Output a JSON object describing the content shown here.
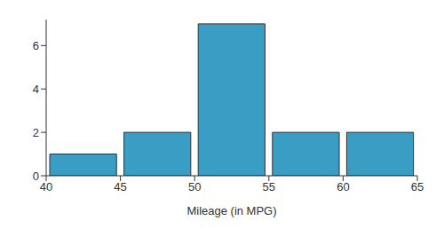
{
  "chart_data": {
    "type": "histogram",
    "x_label": "Mileage (in MPG)",
    "bins": [
      40,
      45,
      50,
      55,
      60,
      65
    ],
    "values": [
      1,
      2,
      7,
      2,
      2
    ],
    "color": "#3a9ec4",
    "xlim": [
      40,
      65
    ],
    "xticks": [
      40,
      45,
      50,
      55,
      60,
      65
    ],
    "ylim": [
      0,
      7.2
    ],
    "yticks": [
      0,
      2,
      4,
      6
    ],
    "grid": false
  }
}
